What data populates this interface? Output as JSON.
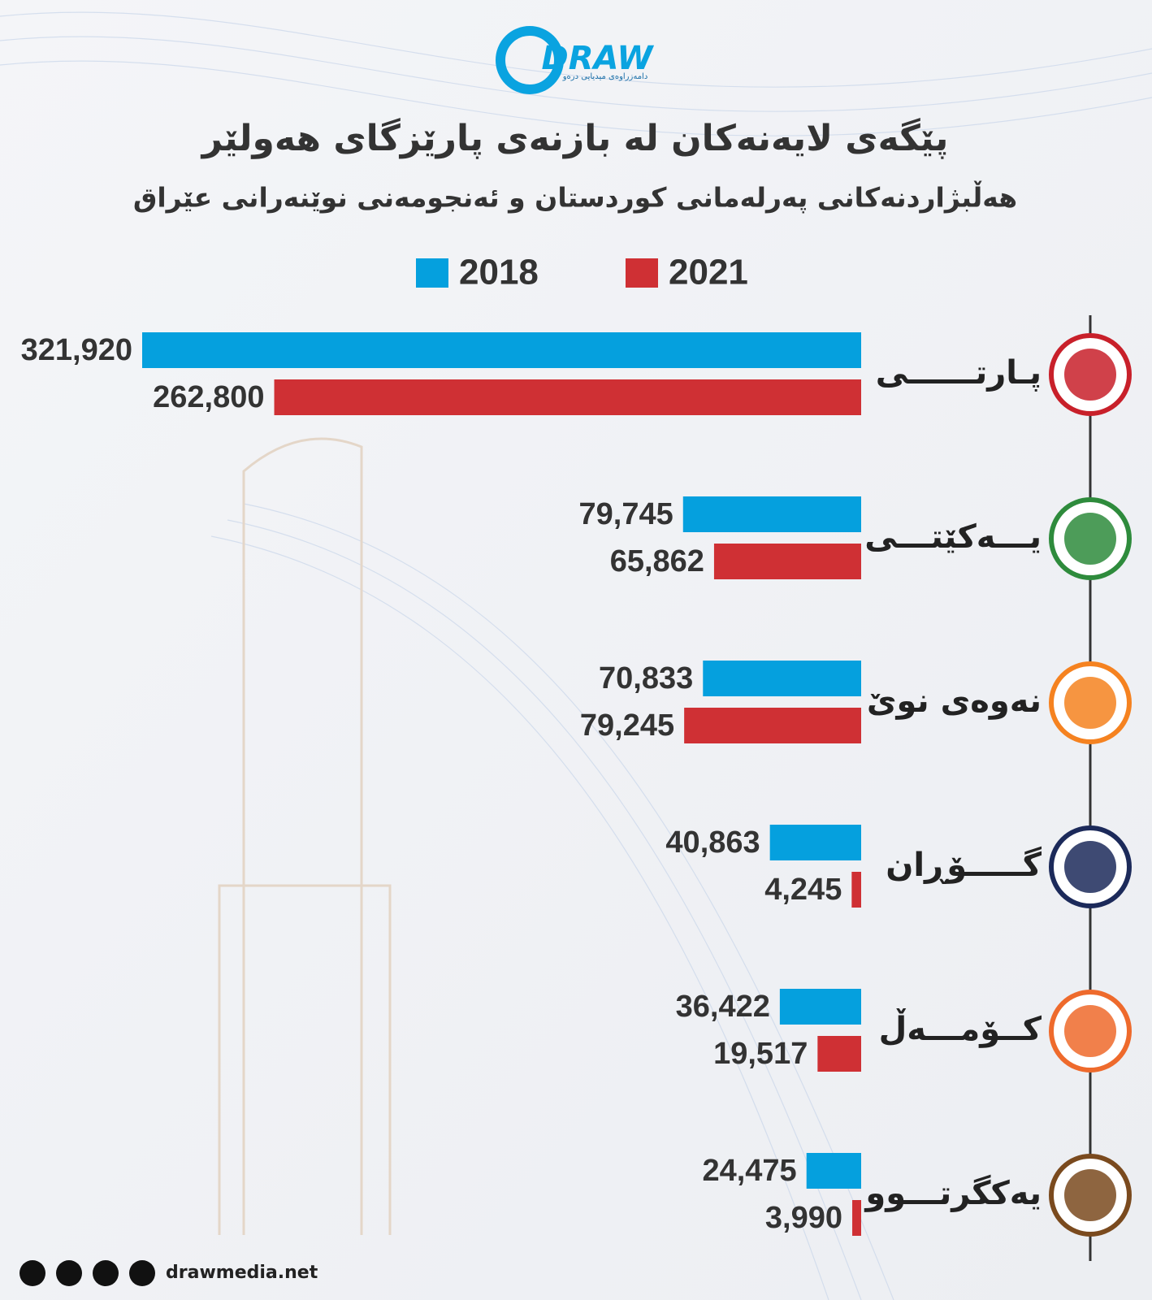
{
  "header": {
    "logo": "DRAW",
    "logo_tagline": "دامەزراوەی میدیایی درەو"
  },
  "chart_data": {
    "type": "hbar",
    "title": "پێگەی لایەنەکان لە بازنەی پارێزگای هەولێر",
    "subtitle": "هەڵبژاردنەکانی پەرلەمانی کوردستان و ئەنجومەنی نوێنەرانی عێراق",
    "categories": [
      "پـارتــــــی",
      "یـــەکێتـــی",
      "نەوەی نوێ",
      "گـــــۆڕان",
      "کــۆمـــەڵ",
      "یەکگرتـــوو"
    ],
    "series": [
      {
        "name": "2018",
        "color": "#05a0de",
        "values": [
          321920,
          79745,
          70833,
          40863,
          36422,
          24475
        ],
        "value_labels": [
          "321,920",
          "79,745",
          "70,833",
          "40,863",
          "36,422",
          "24,475"
        ]
      },
      {
        "name": "2021",
        "color": "#cf3034",
        "values": [
          262800,
          65862,
          79245,
          4245,
          19517,
          3990
        ],
        "value_labels": [
          "262,800",
          "65,862",
          "79,245",
          "4,245",
          "19,517",
          "3,990"
        ]
      }
    ],
    "logo_colors": [
      "#c8202a",
      "#2e8b3c",
      "#f58220",
      "#1c2a5a",
      "#ee6a2c",
      "#7a4a1e"
    ]
  },
  "footer": {
    "website": "drawmedia.net"
  }
}
